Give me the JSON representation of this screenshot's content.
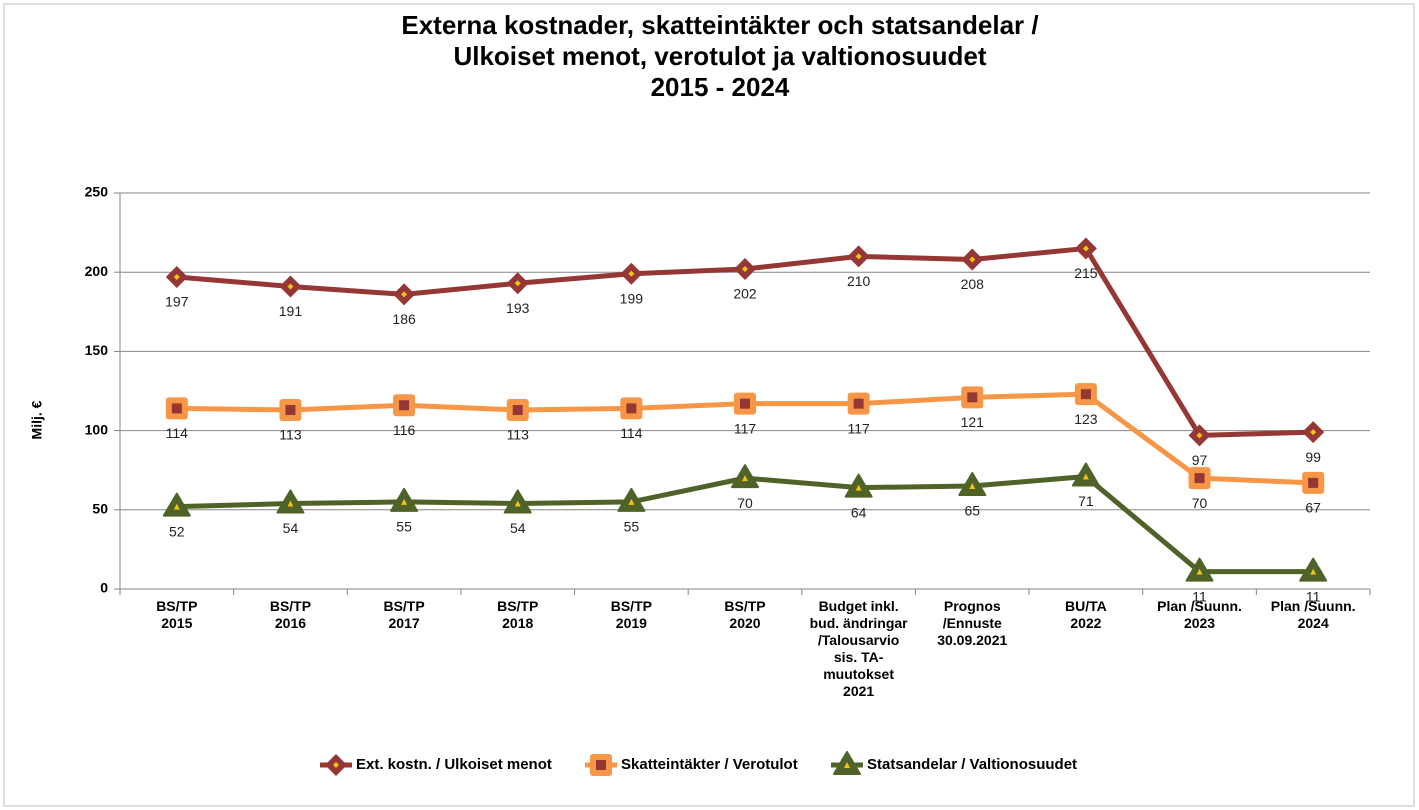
{
  "chart_data": {
    "type": "line",
    "title": "Externa kostnader, skatteintäkter och statsandelar /\nUlkoiset menot, verotulot ja valtionosuudet\n2015 - 2024",
    "y_label": "Milj. €",
    "categories": [
      "BS/TP\n2015",
      "BS/TP\n2016",
      "BS/TP\n2017",
      "BS/TP\n2018",
      "BS/TP\n2019",
      "BS/TP\n2020",
      "Budget inkl.\nbud. ändringar\n/Talousarvio\nsis. TA-\nmuutokset\n2021",
      "Prognos\n/Ennuste\n30.09.2021",
      "BU/TA\n2022",
      "Plan /Suunn.\n2023",
      "Plan /Suunn.\n2024"
    ],
    "series": [
      {
        "name": "Ext. kostn. / Ulkoiset menot",
        "color": "#953735",
        "marker": "diamond",
        "marker_fill": "#f2c314",
        "values": [
          197,
          191,
          186,
          193,
          199,
          202,
          210,
          208,
          215,
          97,
          99
        ]
      },
      {
        "name": "Skatteintäkter / Verotulot",
        "color": "#f79646",
        "marker": "square",
        "marker_fill": "#953735",
        "values": [
          114,
          113,
          116,
          113,
          114,
          117,
          117,
          121,
          123,
          70,
          67
        ]
      },
      {
        "name": "Statsandelar / Valtionosuudet",
        "color": "#4f6228",
        "marker": "triangle",
        "marker_fill": "#f2c314",
        "values": [
          52,
          54,
          55,
          54,
          55,
          70,
          64,
          65,
          71,
          11,
          11
        ]
      }
    ],
    "ylim": [
      0,
      250
    ],
    "yticks": [
      0,
      50,
      100,
      150,
      200,
      250
    ],
    "grid": true,
    "legend": "bottom"
  }
}
